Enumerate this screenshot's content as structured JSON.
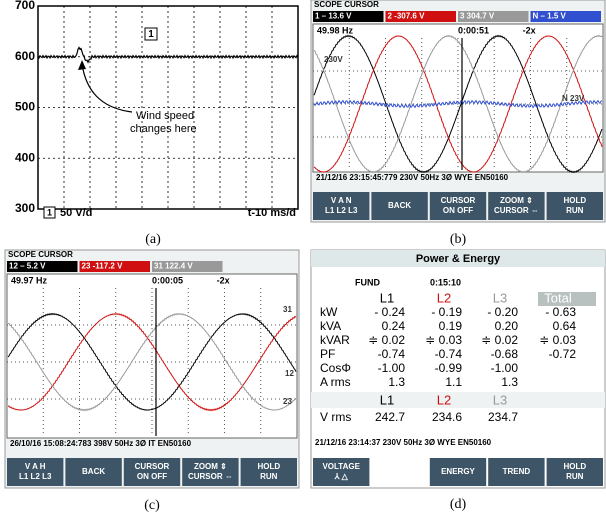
{
  "panel_a": {
    "yticks": [
      700,
      600,
      500,
      400,
      300
    ],
    "channel_marker": "1",
    "annotation": [
      "Wind speed",
      "changes here"
    ],
    "scale_channel": "1",
    "scale": "50 V/d",
    "timebase": "t-10 ms/d",
    "caption": "(a)"
  },
  "panel_b": {
    "mode": "SCOPE CURSOR",
    "readings": [
      "1  – 13.6  V",
      "2 -307.6  V",
      "3  304.7  V",
      "N  – 1.5  V"
    ],
    "freq": "49.98 Hz",
    "time": "0:00:51",
    "zoom": "-2x",
    "labels": [
      "230V",
      "N  23V"
    ],
    "status": "21/12/16  23:15:45:779 230V  50Hz 3Ø WYE    EN50160",
    "buttons": [
      [
        "V  A  N",
        "L1 L2 L3"
      ],
      [
        "BACK"
      ],
      [
        "CURSOR",
        "ON OFF"
      ],
      [
        "ZOOM ⇕",
        "CURSOR ⇔"
      ],
      [
        "HOLD",
        "RUN"
      ]
    ],
    "caption": "(b)"
  },
  "panel_c": {
    "mode": "SCOPE CURSOR",
    "readings": [
      "12  – 5.2  V",
      "23 -117.2  V",
      "31  122.4  V"
    ],
    "freq": "49.97 Hz",
    "time": "0:00:05",
    "zoom": "-2x",
    "labels": [
      "31",
      "12",
      "23"
    ],
    "status": "26/10/16  15:08:24:783 398V  50Hz 3Ø IT    EN50160",
    "buttons": [
      [
        "V  A  H",
        "L1 L2 L3"
      ],
      [
        "BACK"
      ],
      [
        "CURSOR",
        "ON OFF"
      ],
      [
        "ZOOM ⇕",
        "CURSOR ⇔"
      ],
      [
        "HOLD",
        "RUN"
      ]
    ],
    "caption": "(c)"
  },
  "panel_d": {
    "title": "Power & Energy",
    "mode": "FUND",
    "time": "0:15:10",
    "columns": [
      "L1",
      "L2",
      "L3",
      "Total"
    ],
    "rows": [
      {
        "label": "kW",
        "cells": [
          "- 0.24",
          "- 0.19",
          "- 0.20",
          "- 0.63"
        ]
      },
      {
        "label": "kVA",
        "cells": [
          "0.24",
          "0.19",
          "0.20",
          "0.64"
        ]
      },
      {
        "label": "kVAR",
        "cells": [
          "≑ 0.02",
          "≑ 0.03",
          "≑ 0.02",
          "≑ 0.03"
        ]
      },
      {
        "label": "PF",
        "cells": [
          "-0.74",
          "-0.74",
          "-0.68",
          "-0.72"
        ]
      },
      {
        "label": "CosΦ",
        "cells": [
          "-1.00",
          "-0.99",
          "-1.00"
        ]
      },
      {
        "label": "A rms",
        "cells": [
          "1.3",
          "1.1",
          "1.3"
        ]
      }
    ],
    "volt_columns": [
      "L1",
      "L2",
      "L3"
    ],
    "volt_row": {
      "label": "V rms",
      "cells": [
        "242.7",
        "234.6",
        "234.7"
      ]
    },
    "status": "21/12/16 23:14:37     230V  50Hz 3Ø WYE    EN50160",
    "buttons": [
      [
        "VOLTAGE",
        "⅄  △"
      ],
      [
        "ENERGY"
      ],
      [
        "TREND"
      ],
      [
        "HOLD",
        "RUN"
      ]
    ],
    "caption": "(d)"
  }
}
